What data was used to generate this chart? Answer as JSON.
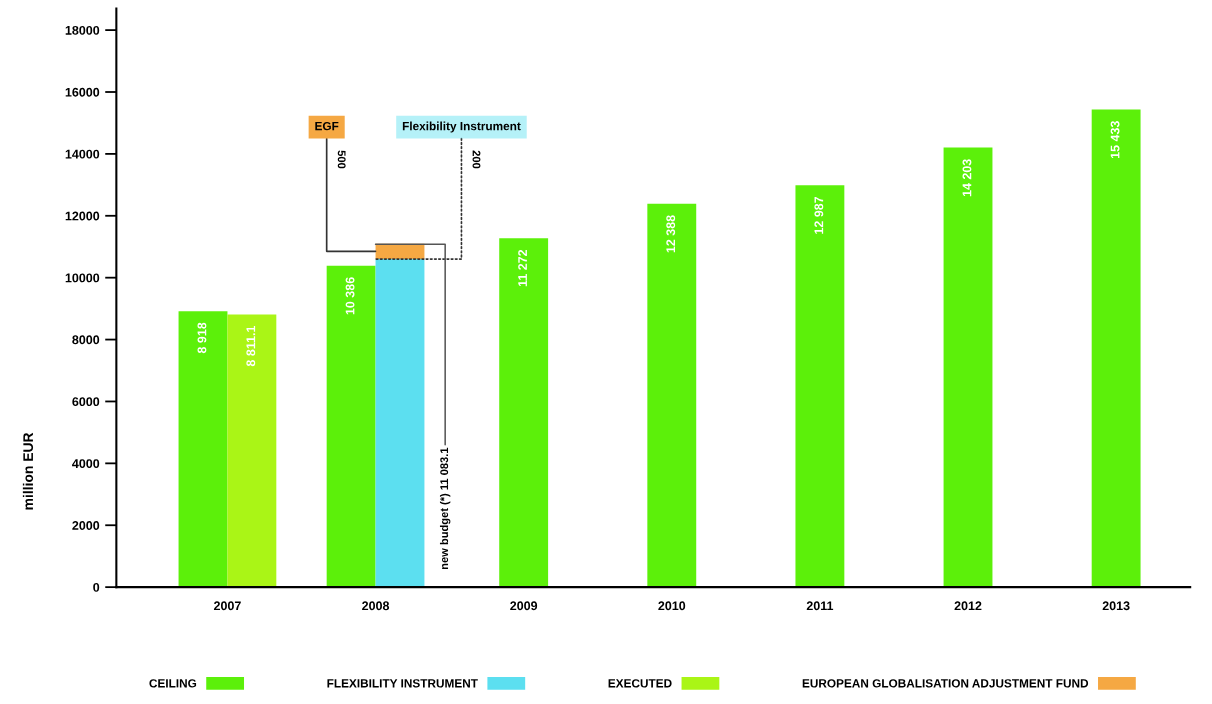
{
  "chart_data": {
    "type": "bar",
    "categories": [
      "2007",
      "2008",
      "2009",
      "2010",
      "2011",
      "2012",
      "2013"
    ],
    "series": [
      {
        "name": "CEILING",
        "color": "#5cf00a",
        "values": [
          8918,
          10386,
          11272,
          12388,
          12987,
          14203,
          15433
        ],
        "value_labels": [
          "8 918",
          "10 386",
          "11 272",
          "12 388",
          "12 987",
          "14 203",
          "15 433"
        ]
      },
      {
        "name": "FLEXIBILITY INSTRUMENT",
        "color": "#5cdff0",
        "values": [
          null,
          10600,
          null,
          null,
          null,
          null,
          null
        ]
      },
      {
        "name": "EXECUTED",
        "color": "#aaf516",
        "values": [
          8811.1,
          null,
          null,
          null,
          null,
          null,
          null
        ],
        "value_labels": [
          "8 811.1",
          null,
          null,
          null,
          null,
          null,
          null
        ]
      },
      {
        "name": "EUROPEAN GLOBALISATION ADJUSTMENT FUND",
        "color": "#f5a843",
        "values": [
          null,
          500,
          null,
          null,
          null,
          null,
          null
        ],
        "base": [
          null,
          10600,
          null,
          null,
          null,
          null,
          null
        ]
      }
    ],
    "ylabel": "million EUR",
    "ylim": [
      0,
      18700
    ],
    "yticks": [
      0,
      2000,
      4000,
      6000,
      8000,
      10000,
      12000,
      14000,
      16000,
      18000
    ],
    "grid": false,
    "legend": "bottom",
    "annotations": [
      {
        "text": "EGF",
        "x": "2008",
        "y": 10850
      },
      "500",
      {
        "text": "Flexibility Instrument",
        "x": "2008",
        "y": 10600
      },
      "200",
      {
        "text": "new budget (*) 11 083.1",
        "x": "2008",
        "y": 11083.1
      }
    ]
  }
}
